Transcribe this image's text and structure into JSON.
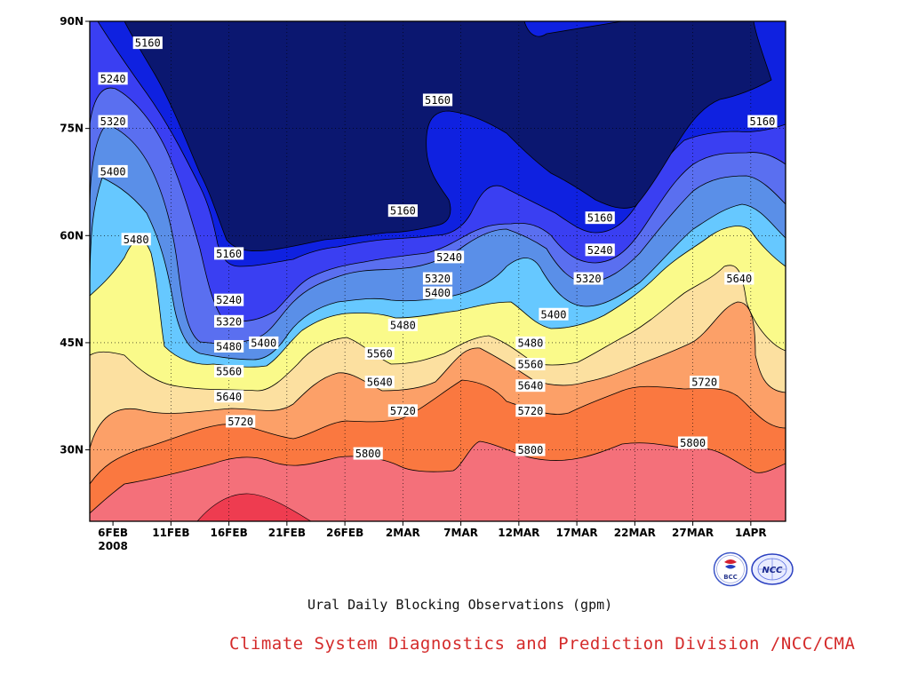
{
  "chart_data": {
    "type": "heatmap",
    "subtype": "filled-contour",
    "caption": "Ural Daily Blocking Observations (gpm)",
    "credit": "Climate System Diagnostics and Prediction Division /NCC/CMA",
    "xlabel": "",
    "ylabel": "",
    "x_ticks": [
      "6FEB",
      "11FEB",
      "16FEB",
      "21FEB",
      "26FEB",
      "2MAR",
      "7MAR",
      "12MAR",
      "17MAR",
      "22MAR",
      "27MAR",
      "1APR"
    ],
    "x_year_label": "2008",
    "x_range": [
      "2008-02-04",
      "2008-04-04"
    ],
    "y_ticks": [
      "30N",
      "45N",
      "60N",
      "75N",
      "90N"
    ],
    "y_tick_values": [
      30,
      45,
      60,
      75,
      90
    ],
    "y_range": [
      20,
      90
    ],
    "grid": "dotted",
    "contour_levels": [
      5160,
      5240,
      5320,
      5400,
      5480,
      5560,
      5640,
      5720,
      5800,
      5880
    ],
    "colors": {
      "below_5160": "#0b1770",
      "5160_5240": "#0f21e0",
      "5240_5320": "#3a3ff2",
      "5320_5400": "#5a6ff0",
      "5400_5480": "#5a8fe8",
      "5480_5560": "#66c8ff",
      "5560_5640": "#fafa8a",
      "5640_5720": "#fce0a0",
      "5720_5800": "#fca068",
      "5800_5880": "#fa7840",
      "above_5880": "#f4707a",
      "max": "#ee3c50"
    },
    "contour_labels": [
      {
        "value": "5160",
        "date": "2008-02-09",
        "lat": 87
      },
      {
        "value": "5240",
        "date": "2008-02-06",
        "lat": 82
      },
      {
        "value": "5320",
        "date": "2008-02-06",
        "lat": 76
      },
      {
        "value": "5400",
        "date": "2008-02-06",
        "lat": 69
      },
      {
        "value": "5480",
        "date": "2008-02-08",
        "lat": 59.5
      },
      {
        "value": "5160",
        "date": "2008-02-16",
        "lat": 57.5
      },
      {
        "value": "5240",
        "date": "2008-02-16",
        "lat": 51
      },
      {
        "value": "5320",
        "date": "2008-02-16",
        "lat": 48
      },
      {
        "value": "5400",
        "date": "2008-02-19",
        "lat": 45
      },
      {
        "value": "5480",
        "date": "2008-02-16",
        "lat": 44.5
      },
      {
        "value": "5560",
        "date": "2008-02-16",
        "lat": 41
      },
      {
        "value": "5640",
        "date": "2008-02-16",
        "lat": 37.5
      },
      {
        "value": "5720",
        "date": "2008-02-17",
        "lat": 34
      },
      {
        "value": "5800",
        "date": "2008-02-28",
        "lat": 29.5
      },
      {
        "value": "5160",
        "date": "2008-03-02",
        "lat": 63.5
      },
      {
        "value": "5160",
        "date": "2008-03-05",
        "lat": 79
      },
      {
        "value": "5240",
        "date": "2008-03-06",
        "lat": 57
      },
      {
        "value": "5320",
        "date": "2008-03-05",
        "lat": 54
      },
      {
        "value": "5400",
        "date": "2008-03-05",
        "lat": 52
      },
      {
        "value": "5480",
        "date": "2008-03-02",
        "lat": 47.5
      },
      {
        "value": "5560",
        "date": "2008-02-29",
        "lat": 43.5
      },
      {
        "value": "5640",
        "date": "2008-02-29",
        "lat": 39.5
      },
      {
        "value": "5720",
        "date": "2008-03-02",
        "lat": 35.5
      },
      {
        "value": "5400",
        "date": "2008-03-15",
        "lat": 49
      },
      {
        "value": "5480",
        "date": "2008-03-13",
        "lat": 45
      },
      {
        "value": "5560",
        "date": "2008-03-13",
        "lat": 42
      },
      {
        "value": "5640",
        "date": "2008-03-13",
        "lat": 39
      },
      {
        "value": "5720",
        "date": "2008-03-13",
        "lat": 35.5
      },
      {
        "value": "5800",
        "date": "2008-03-13",
        "lat": 30
      },
      {
        "value": "5160",
        "date": "2008-03-19",
        "lat": 62.5
      },
      {
        "value": "5240",
        "date": "2008-03-19",
        "lat": 58
      },
      {
        "value": "5320",
        "date": "2008-03-18",
        "lat": 54
      },
      {
        "value": "5160",
        "date": "2008-04-02",
        "lat": 76
      },
      {
        "value": "5640",
        "date": "2008-03-31",
        "lat": 54
      },
      {
        "value": "5720",
        "date": "2008-03-28",
        "lat": 39.5
      },
      {
        "value": "5800",
        "date": "2008-03-27",
        "lat": 31
      }
    ]
  }
}
